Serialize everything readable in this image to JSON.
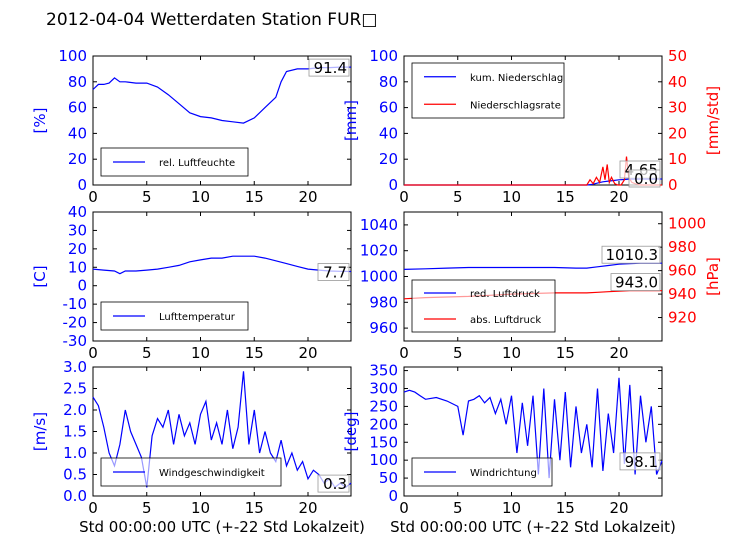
{
  "title": "2012-04-04 Wetterdaten Station FUR□",
  "colors": {
    "primary": "#0000ff",
    "secondary": "#ff0000",
    "axis": "#000000"
  },
  "chart_data": [
    {
      "id": "humidity",
      "type": "line",
      "ylabel": "[%]",
      "xlabel": "",
      "xlim": [
        0,
        24
      ],
      "ylim": [
        0,
        100
      ],
      "xticks": [
        0,
        5,
        10,
        15,
        20
      ],
      "yticks": [
        0,
        20,
        40,
        60,
        80,
        100
      ],
      "legend_placement": "lower-left",
      "last_value_label": "91.4",
      "series": [
        {
          "name": "rel. Luftfeuchte",
          "color": "#0000ff",
          "axis": "left",
          "x": [
            0,
            0.5,
            1,
            1.5,
            2,
            2.5,
            3,
            4,
            5,
            6,
            7,
            8,
            9,
            10,
            11,
            12,
            13,
            14,
            15,
            16,
            17,
            17.5,
            18,
            19,
            20,
            21,
            22,
            23,
            24
          ],
          "y": [
            74,
            78,
            78,
            79,
            83,
            80,
            80,
            79,
            79,
            76,
            70,
            63,
            56,
            53,
            52,
            50,
            49,
            48,
            52,
            60,
            68,
            80,
            88,
            90,
            90,
            91,
            91,
            91.4,
            91.4
          ]
        }
      ]
    },
    {
      "id": "precip",
      "type": "line",
      "ylabel": "[mm]",
      "ylabel_right": "[mm/std]",
      "xlabel": "",
      "xlim": [
        0,
        24
      ],
      "ylim": [
        0,
        100
      ],
      "ylim_right": [
        0,
        50
      ],
      "xticks": [
        0,
        5,
        10,
        15,
        20
      ],
      "yticks": [
        0,
        20,
        40,
        60,
        80,
        100
      ],
      "yticks_right": [
        0,
        10,
        20,
        30,
        40,
        50
      ],
      "legend_placement": "top-left",
      "value_labels": [
        "4.65",
        "0.0"
      ],
      "series": [
        {
          "name": "kum. Niederschlag",
          "color": "#0000ff",
          "axis": "left",
          "x": [
            0,
            17,
            17.5,
            18,
            18.5,
            19,
            19.5,
            20,
            20.5,
            21,
            22,
            23,
            24
          ],
          "y": [
            0,
            0,
            0.5,
            1.5,
            2.5,
            3,
            3.5,
            4,
            4.3,
            4.65,
            4.65,
            4.65,
            4.65
          ]
        },
        {
          "name": "Niederschlagsrate",
          "color": "#ff0000",
          "axis": "right",
          "x": [
            0,
            17,
            17.3,
            17.6,
            17.9,
            18.2,
            18.5,
            18.7,
            18.9,
            19.1,
            19.3,
            19.6,
            19.9,
            20.2,
            20.5,
            20.7,
            20.9,
            21.2,
            21.5,
            22,
            24
          ],
          "y": [
            0,
            0,
            2,
            0.5,
            3,
            1,
            7,
            2,
            8,
            1,
            3,
            0.5,
            0,
            0,
            2,
            11,
            3,
            1,
            0.5,
            0,
            0
          ]
        }
      ]
    },
    {
      "id": "temperature",
      "type": "line",
      "ylabel": "[C]",
      "xlabel": "",
      "xlim": [
        0,
        24
      ],
      "ylim": [
        -30,
        40
      ],
      "xticks": [
        0,
        5,
        10,
        15,
        20
      ],
      "yticks": [
        -30,
        -20,
        -10,
        0,
        10,
        20,
        30,
        40
      ],
      "legend_placement": "lower-left",
      "last_value_label": "7.7",
      "series": [
        {
          "name": "Lufttemperatur",
          "color": "#0000ff",
          "axis": "left",
          "x": [
            0,
            1,
            2,
            2.5,
            3,
            4,
            5,
            6,
            7,
            8,
            9,
            10,
            11,
            12,
            13,
            14,
            15,
            16,
            17,
            18,
            19,
            20,
            21,
            22,
            23,
            24
          ],
          "y": [
            9,
            8.5,
            8,
            6.5,
            8,
            8,
            8.5,
            9,
            10,
            11,
            13,
            14,
            15,
            15,
            16,
            16,
            16,
            15,
            13.5,
            12,
            10.5,
            9,
            8.5,
            8,
            7.8,
            7.7
          ]
        }
      ]
    },
    {
      "id": "pressure",
      "type": "line",
      "ylabel": "",
      "ylabel_right": "[hPa]",
      "xlabel": "",
      "xlim": [
        0,
        24
      ],
      "ylim": [
        950,
        1050
      ],
      "ylim_right": [
        900,
        1010
      ],
      "xticks": [
        0,
        5,
        10,
        15,
        20
      ],
      "yticks": [
        960,
        980,
        1000,
        1020,
        1040
      ],
      "yticks_right": [
        920,
        940,
        960,
        980,
        1000
      ],
      "legend_placement": "lower-left",
      "value_labels": [
        "1010.3",
        "943.0"
      ],
      "series": [
        {
          "name": "red. Luftdruck",
          "color": "#0000ff",
          "axis": "left",
          "x": [
            0,
            2,
            4,
            6,
            8,
            10,
            12,
            14,
            16,
            17,
            18,
            19,
            20,
            21,
            22,
            23,
            24
          ],
          "y": [
            1005.5,
            1006,
            1006.5,
            1007,
            1007,
            1007,
            1007,
            1007,
            1006.5,
            1006.5,
            1007.5,
            1008.5,
            1009.5,
            1010,
            1010.3,
            1010.3,
            1010.3
          ]
        },
        {
          "name": "abs. Luftdruck",
          "color": "#ff0000",
          "axis": "right",
          "x": [
            0,
            2,
            4,
            6,
            8,
            10,
            12,
            14,
            16,
            17,
            18,
            19,
            20,
            21,
            22,
            23,
            24
          ],
          "y": [
            936,
            937,
            937.5,
            938,
            939,
            940,
            940.5,
            941,
            941,
            941,
            941.5,
            942,
            942.5,
            943,
            943,
            943,
            943
          ]
        }
      ]
    },
    {
      "id": "windspeed",
      "type": "line",
      "ylabel": "[m/s]",
      "xlabel": "Std 00:00:00 UTC (+-22 Std Lokalzeit)",
      "xlim": [
        0,
        24
      ],
      "ylim": [
        0,
        3.0
      ],
      "xticks": [
        0,
        5,
        10,
        15,
        20
      ],
      "yticks": [
        0.0,
        0.5,
        1.0,
        1.5,
        2.0,
        2.5,
        3.0
      ],
      "legend_placement": "lower-left",
      "last_value_label": "0.3",
      "series": [
        {
          "name": "Windgeschwindigkeit",
          "color": "#0000ff",
          "axis": "left",
          "x": [
            0,
            0.5,
            1,
            1.5,
            2,
            2.5,
            3,
            3.5,
            4,
            4.5,
            5,
            5.5,
            6,
            6.5,
            7,
            7.5,
            8,
            8.5,
            9,
            9.5,
            10,
            10.5,
            11,
            11.5,
            12,
            12.5,
            13,
            13.5,
            14,
            14.5,
            15,
            15.5,
            16,
            16.5,
            17,
            17.5,
            18,
            18.5,
            19,
            19.5,
            20,
            20.5,
            21,
            21.5,
            22,
            22.5,
            23,
            23.5,
            24
          ],
          "y": [
            2.3,
            2.1,
            1.6,
            1.0,
            0.7,
            1.2,
            2.0,
            1.5,
            1.2,
            0.9,
            0.2,
            1.4,
            1.8,
            1.6,
            2.0,
            1.2,
            1.9,
            1.4,
            1.7,
            1.2,
            1.9,
            2.2,
            1.3,
            1.7,
            1.2,
            2.0,
            1.1,
            1.6,
            2.9,
            1.2,
            2.0,
            1.0,
            1.5,
            1.0,
            0.8,
            1.3,
            0.7,
            1.0,
            0.6,
            0.8,
            0.4,
            0.6,
            0.5,
            0.3,
            0.4,
            0.2,
            0.3,
            0.2,
            0.3
          ]
        }
      ]
    },
    {
      "id": "winddir",
      "type": "line",
      "ylabel": "[deg]",
      "xlabel": "Std 00:00:00 UTC (+-22 Std Lokalzeit)",
      "xlim": [
        0,
        24
      ],
      "ylim": [
        0,
        360
      ],
      "xticks": [
        0,
        5,
        10,
        15,
        20
      ],
      "yticks": [
        0,
        50,
        100,
        150,
        200,
        250,
        300,
        350
      ],
      "legend_placement": "lower-left",
      "last_value_label": "98.1",
      "series": [
        {
          "name": "Windrichtung",
          "color": "#0000ff",
          "axis": "left",
          "x": [
            0,
            0.5,
            1,
            1.5,
            2,
            3,
            4,
            5,
            5.5,
            6,
            6.5,
            7,
            7.5,
            8,
            8.5,
            9,
            9.5,
            10,
            10.5,
            11,
            11.5,
            12,
            12.5,
            13,
            13.5,
            14,
            14.5,
            15,
            15.5,
            16,
            16.5,
            17,
            17.5,
            18,
            18.5,
            19,
            19.5,
            20,
            20.5,
            21,
            21.5,
            22,
            22.5,
            23,
            23.5,
            24
          ],
          "y": [
            290,
            295,
            290,
            280,
            270,
            275,
            265,
            250,
            170,
            265,
            270,
            280,
            260,
            275,
            230,
            270,
            200,
            280,
            120,
            260,
            140,
            280,
            60,
            300,
            50,
            270,
            100,
            290,
            80,
            250,
            120,
            200,
            80,
            300,
            70,
            230,
            120,
            330,
            90,
            310,
            60,
            280,
            150,
            250,
            60,
            98
          ]
        }
      ]
    }
  ]
}
